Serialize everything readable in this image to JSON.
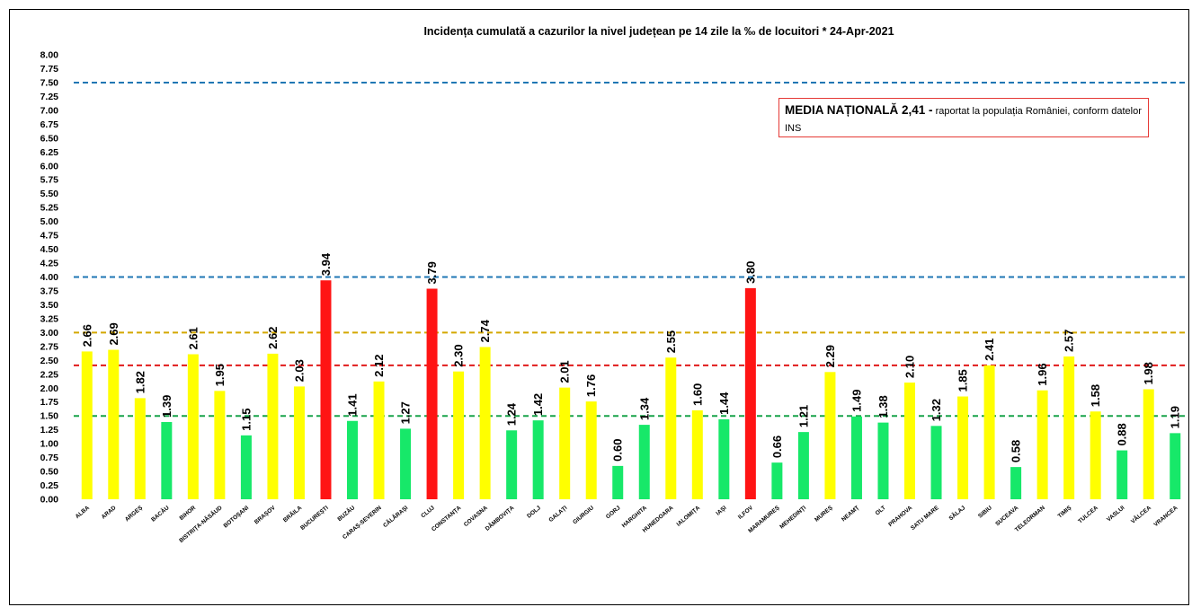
{
  "chart_data": {
    "type": "bar",
    "title": "Incidența cumulată a cazurilor la nivel județean pe 14 zile la ‰ de locuitori *   24-Apr-2021",
    "xlabel": "",
    "ylabel": "",
    "ylim": [
      0,
      8
    ],
    "ytick_step": 0.25,
    "grid": false,
    "legend": "none",
    "categories": [
      "ALBA",
      "ARAD",
      "ARGEȘ",
      "BACĂU",
      "BIHOR",
      "BISTRIȚA-NĂSĂUD",
      "BOTOȘANI",
      "BRAȘOV",
      "BRĂILA",
      "BUCUREȘTI",
      "BUZĂU",
      "CARAȘ-SEVERIN",
      "CĂLĂRAȘI",
      "CLUJ",
      "CONSTANȚA",
      "COVASNA",
      "DÂMBOVIȚA",
      "DOLJ",
      "GALAȚI",
      "GIURGIU",
      "GORJ",
      "HARGHITA",
      "HUNEDOARA",
      "IALOMIȚA",
      "IAȘI",
      "ILFOV",
      "MARAMUREȘ",
      "MEHEDINȚI",
      "MUREȘ",
      "NEAMȚ",
      "OLT",
      "PRAHOVA",
      "SATU MARE",
      "SĂLAJ",
      "SIBIU",
      "SUCEAVA",
      "TELEORMAN",
      "TIMIȘ",
      "TULCEA",
      "VASLUI",
      "VÂLCEA",
      "VRANCEA"
    ],
    "values": [
      2.66,
      2.69,
      1.82,
      1.39,
      2.61,
      1.95,
      1.15,
      2.62,
      2.03,
      3.94,
      1.41,
      2.12,
      1.27,
      3.79,
      2.3,
      2.74,
      1.24,
      1.42,
      2.01,
      1.76,
      0.6,
      1.34,
      2.55,
      1.6,
      1.44,
      3.8,
      0.66,
      1.21,
      2.29,
      1.49,
      1.38,
      2.1,
      1.32,
      1.85,
      2.41,
      0.58,
      1.96,
      2.57,
      1.58,
      0.88,
      1.98,
      1.19
    ],
    "value_labels": [
      "2.66",
      "2.69",
      "1.82",
      "1.39",
      "2.61",
      "1.95",
      "1.15",
      "2.62",
      "2.03",
      "3.94",
      "1.41",
      "2.12",
      "1.27",
      "3.79",
      "2.30",
      "2.74",
      "1.24",
      "1.42",
      "2.01",
      "1.76",
      "0.60",
      "1.34",
      "2.55",
      "1.60",
      "1.44",
      "3.80",
      "0.66",
      "1.21",
      "2.29",
      "1.49",
      "1.38",
      "2.10",
      "1.32",
      "1.85",
      "2.41",
      "0.58",
      "1.96",
      "2.57",
      "1.58",
      "0.88",
      "1.98",
      "1.19"
    ],
    "bar_colors": {
      "green": "#17e869",
      "yellow": "#ffff00",
      "red": "#ff1414"
    },
    "reference_lines": [
      {
        "value": 7.5,
        "color": "#1f77b4"
      },
      {
        "value": 4.0,
        "color": "#1f77b4"
      },
      {
        "value": 3.0,
        "color": "#d4a800"
      },
      {
        "value": 2.41,
        "color": "#e01b1b"
      },
      {
        "value": 1.5,
        "color": "#19a34a"
      }
    ],
    "annotation": {
      "strong": "MEDIA NAȚIONALĂ  2,41 -",
      "rest": " raportat la populația României, conform datelor INS",
      "border_color": "#e53935"
    }
  }
}
